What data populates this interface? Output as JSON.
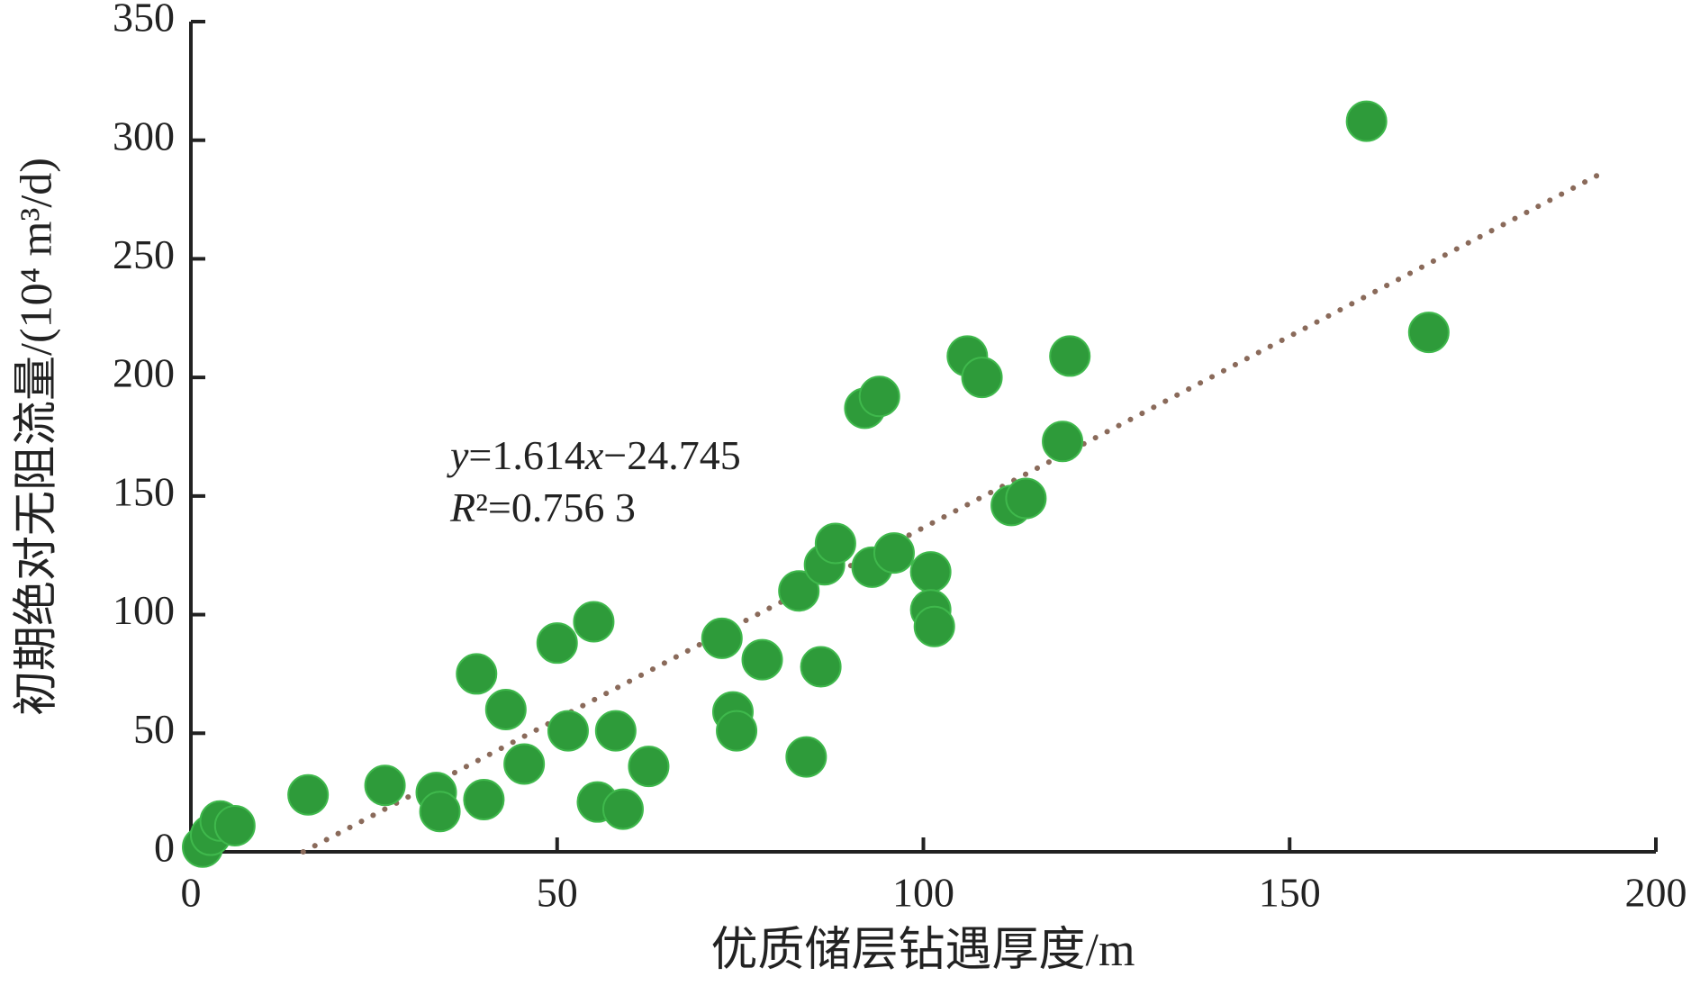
{
  "chart_data": {
    "type": "scatter",
    "x_label": "优质储层钻遇厚度/m",
    "y_label": "初期绝对无阻流量/(10⁴ m³/d)",
    "xlim": [
      0,
      200
    ],
    "xticks": [
      0,
      50,
      100,
      150,
      200
    ],
    "ylim": [
      0,
      350
    ],
    "yticks": [
      0,
      50,
      100,
      150,
      200,
      250,
      300,
      350
    ],
    "series": [
      {
        "color": "#2e9b3a",
        "x": [
          1.6,
          2.7,
          4,
          6,
          16,
          26.5,
          33.5,
          34,
          40,
          39,
          43,
          45.5,
          50,
          51.5,
          55,
          55.5,
          58,
          59,
          62.5,
          72.5,
          74,
          74.5,
          78,
          83,
          84,
          86,
          86.5,
          88,
          92,
          94,
          93,
          96,
          101,
          101,
          101.5,
          106,
          108,
          112,
          114,
          119,
          120,
          160.5,
          169
        ],
        "values": [
          2,
          7,
          13,
          11,
          24,
          28,
          25,
          17,
          22,
          75,
          60,
          37,
          88,
          51,
          97,
          21,
          51,
          18,
          36,
          90,
          59,
          51,
          81,
          110,
          40,
          78,
          121,
          130,
          187,
          192,
          120,
          126,
          118,
          102,
          95,
          209,
          200,
          146,
          149,
          173,
          209,
          308,
          219
        ]
      }
    ],
    "trendline": {
      "slope": 1.614,
      "intercept": -24.745,
      "color": "#8a6a5a",
      "equation_label": "y=1.614x−24.745",
      "r2_label": "R²=0.756 3"
    }
  }
}
